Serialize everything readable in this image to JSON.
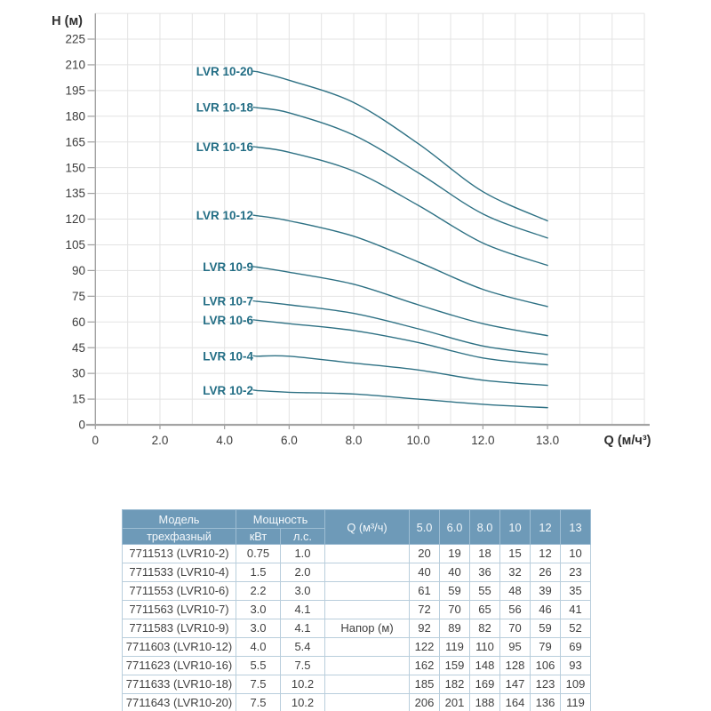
{
  "page": {
    "background": "#ffffff"
  },
  "colors": {
    "curve": "#2e7184",
    "curve_label": "#236e85",
    "grid": "#e3e3e3",
    "axis": "#a4a4a4",
    "tick_text": "#3c3c3c",
    "table_header_bg": "#6e9ab8",
    "table_header_text": "#f4f8fb",
    "table_header_border": "#9dbdd3",
    "table_border": "#b9cedc",
    "table_bottom_border": "#79a7c8",
    "table_text": "#3f3f3f"
  },
  "chart_data": {
    "type": "line",
    "title": "",
    "ylabel": "H (м)",
    "xlabel": "Q (м/ч³)",
    "x": [
      5.0,
      6.0,
      8.0,
      10,
      12,
      13
    ],
    "series": [
      {
        "name": "LVR 10-20",
        "values": [
          206,
          201,
          188,
          164,
          136,
          119
        ]
      },
      {
        "name": "LVR 10-18",
        "values": [
          185,
          182,
          169,
          147,
          123,
          109
        ]
      },
      {
        "name": "LVR 10-16",
        "values": [
          162,
          159,
          148,
          128,
          106,
          93
        ]
      },
      {
        "name": "LVR 10-12",
        "values": [
          122,
          119,
          110,
          95,
          79,
          69
        ]
      },
      {
        "name": "LVR 10-9",
        "values": [
          92,
          89,
          82,
          70,
          59,
          52
        ]
      },
      {
        "name": "LVR 10-7",
        "values": [
          72,
          70,
          65,
          56,
          46,
          41
        ]
      },
      {
        "name": "LVR 10-6",
        "values": [
          61,
          59,
          55,
          48,
          39,
          35
        ]
      },
      {
        "name": "LVR 10-4",
        "values": [
          40,
          40,
          36,
          32,
          26,
          23
        ]
      },
      {
        "name": "LVR 10-2",
        "values": [
          20,
          19,
          18,
          15,
          12,
          10
        ]
      }
    ],
    "x_tick_labels": [
      "0",
      "2.0",
      "4.0",
      "6.0",
      "8.0",
      "10.0",
      "12.0",
      "13.0"
    ],
    "x_tick_values": [
      0,
      2,
      4,
      6,
      8,
      10,
      12,
      13
    ],
    "y_tick_values": [
      0,
      15,
      30,
      45,
      60,
      75,
      90,
      105,
      120,
      135,
      150,
      165,
      180,
      195,
      210,
      225
    ],
    "ylim": [
      0,
      240
    ],
    "grid": true,
    "legend_position": "labels-left-of-curves"
  },
  "table": {
    "header": {
      "model": "Модель",
      "model_sub": "трехфазный",
      "power": "Мощность",
      "kw": "кВт",
      "hp": "л.с.",
      "q": "Q (м³/ч)",
      "q_cols": [
        "5.0",
        "6.0",
        "8.0",
        "10",
        "12",
        "13"
      ]
    },
    "napor_label": "Напор (м)",
    "napor_row_index": 4,
    "rows": [
      {
        "model": "7711513 (LVR10-2)",
        "kw": "0.75",
        "hp": "1.0",
        "values": [
          20,
          19,
          18,
          15,
          12,
          10
        ]
      },
      {
        "model": "7711533 (LVR10-4)",
        "kw": "1.5",
        "hp": "2.0",
        "values": [
          40,
          40,
          36,
          32,
          26,
          23
        ]
      },
      {
        "model": "7711553 (LVR10-6)",
        "kw": "2.2",
        "hp": "3.0",
        "values": [
          61,
          59,
          55,
          48,
          39,
          35
        ]
      },
      {
        "model": "7711563 (LVR10-7)",
        "kw": "3.0",
        "hp": "4.1",
        "values": [
          72,
          70,
          65,
          56,
          46,
          41
        ]
      },
      {
        "model": "7711583 (LVR10-9)",
        "kw": "3.0",
        "hp": "4.1",
        "values": [
          92,
          89,
          82,
          70,
          59,
          52
        ]
      },
      {
        "model": "7711603 (LVR10-12)",
        "kw": "4.0",
        "hp": "5.4",
        "values": [
          122,
          119,
          110,
          95,
          79,
          69
        ]
      },
      {
        "model": "7711623 (LVR10-16)",
        "kw": "5.5",
        "hp": "7.5",
        "values": [
          162,
          159,
          148,
          128,
          106,
          93
        ]
      },
      {
        "model": "7711633 (LVR10-18)",
        "kw": "7.5",
        "hp": "10.2",
        "values": [
          185,
          182,
          169,
          147,
          123,
          109
        ]
      },
      {
        "model": "7711643 (LVR10-20)",
        "kw": "7.5",
        "hp": "10.2",
        "values": [
          206,
          201,
          188,
          164,
          136,
          119
        ]
      }
    ]
  }
}
